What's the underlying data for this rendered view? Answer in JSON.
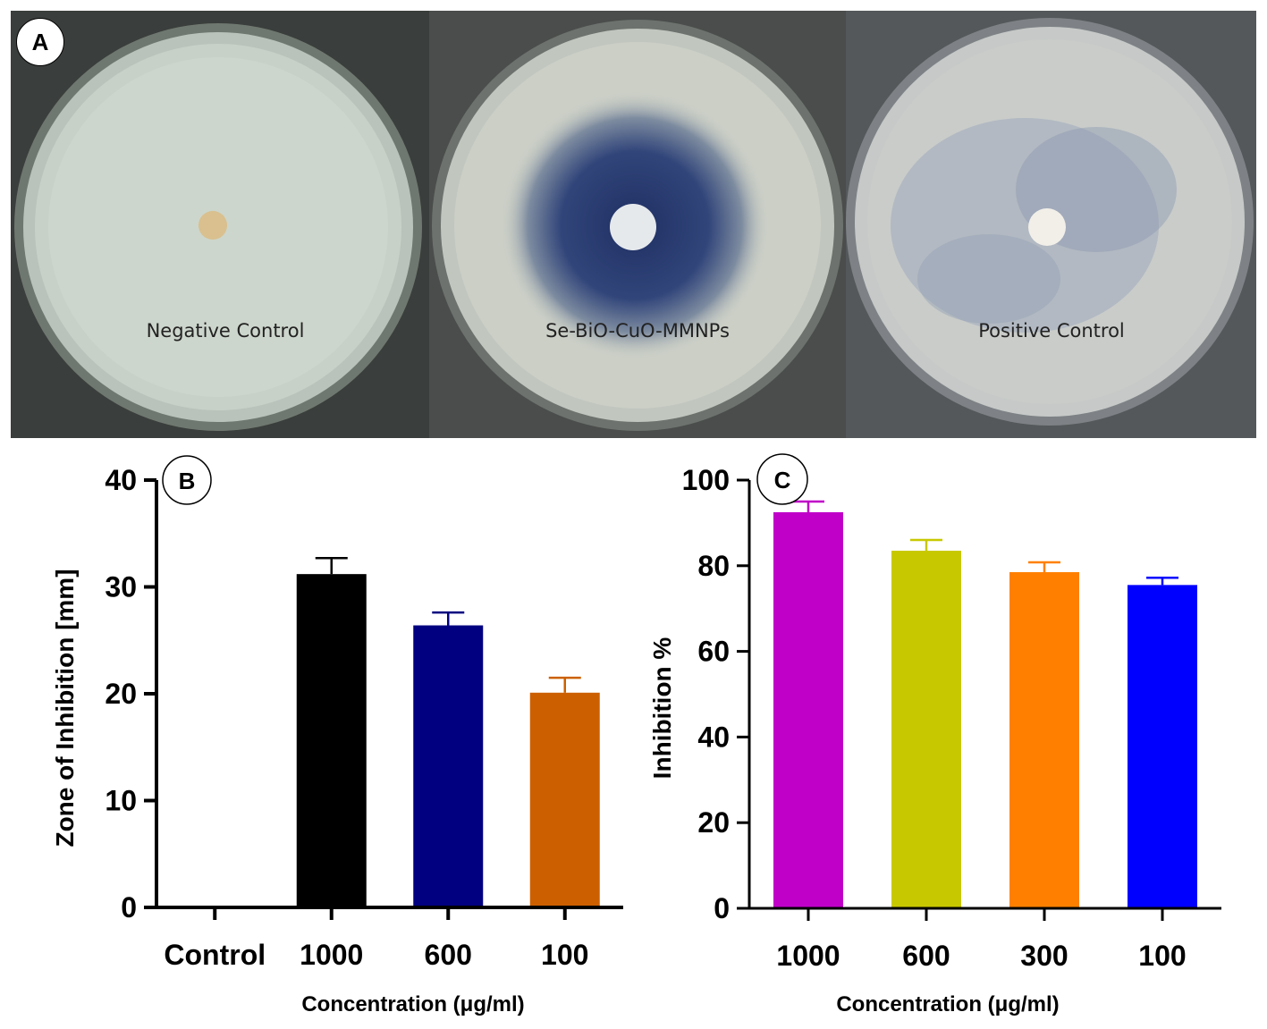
{
  "panel_a": {
    "label": "A",
    "dishes": [
      {
        "caption": "Negative Control",
        "disk_color": "#d9c08e",
        "zone": "none"
      },
      {
        "caption": "Se-BiO-CuO-MMNPs",
        "disk_color": "#e6e9ec",
        "zone": "strong"
      },
      {
        "caption": "Positive Control",
        "disk_color": "#f1efe8",
        "zone": "diffuse"
      }
    ]
  },
  "chart_data": [
    {
      "panel_label": "B",
      "type": "bar",
      "categories": [
        "Control",
        "1000",
        "600",
        "100"
      ],
      "values": [
        0,
        31.2,
        26.4,
        20.1
      ],
      "errors": [
        0,
        1.5,
        1.2,
        1.4
      ],
      "colors": [
        "#000000",
        "#000000",
        "#000080",
        "#cc6000"
      ],
      "ylim": [
        0,
        40
      ],
      "yticks": [
        0,
        10,
        20,
        30,
        40
      ],
      "xlabel": "Concentration (μg/ml)",
      "ylabel": "Zone of Inhibition  [mm]"
    },
    {
      "panel_label": "C",
      "type": "bar",
      "categories": [
        "1000",
        "600",
        "300",
        "100"
      ],
      "values": [
        92.5,
        83.5,
        78.5,
        75.5
      ],
      "errors": [
        2.5,
        2.5,
        2.3,
        1.7
      ],
      "colors": [
        "#c000c8",
        "#c8c800",
        "#ff8000",
        "#0000ff"
      ],
      "ylim": [
        0,
        100
      ],
      "yticks": [
        0,
        20,
        40,
        60,
        80,
        100
      ],
      "xlabel": "Concentration (μg/ml)",
      "ylabel": "Inhibition %"
    }
  ]
}
